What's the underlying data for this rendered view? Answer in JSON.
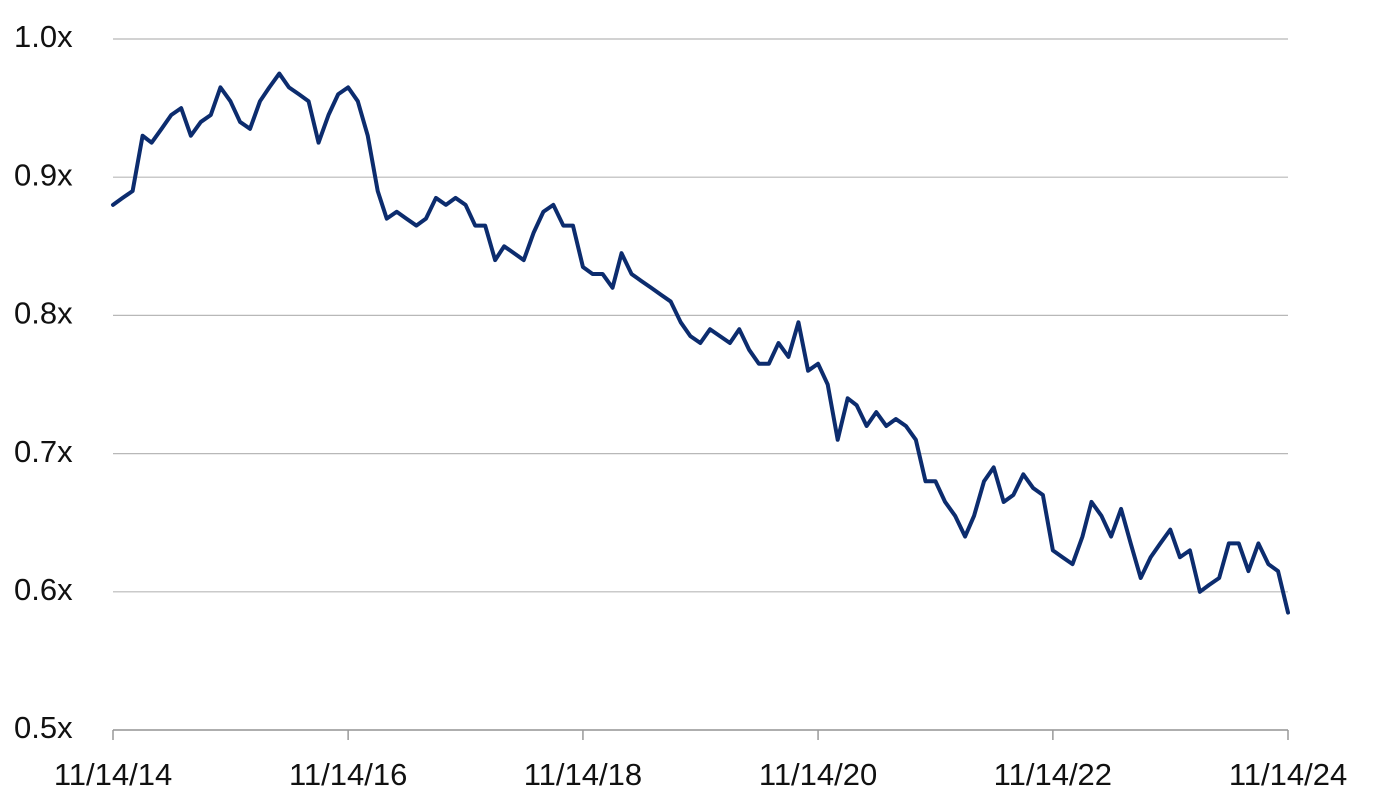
{
  "chart_data": {
    "type": "line",
    "color": "#0c2c6e",
    "grid": true,
    "ylim": [
      0.5,
      1.0
    ],
    "yticks": [
      {
        "value": 0.5,
        "label": "0.5x"
      },
      {
        "value": 0.6,
        "label": "0.6x"
      },
      {
        "value": 0.7,
        "label": "0.7x"
      },
      {
        "value": 0.8,
        "label": "0.8x"
      },
      {
        "value": 0.9,
        "label": "0.9x"
      },
      {
        "value": 1.0,
        "label": "1.0x"
      }
    ],
    "xlim": [
      "11/14/14",
      "11/14/24"
    ],
    "xticks": [
      "11/14/14",
      "11/14/16",
      "11/14/18",
      "11/14/20",
      "11/14/22",
      "11/14/24"
    ],
    "x": [
      "11/14/14",
      "12/14/14",
      "1/14/15",
      "2/14/15",
      "3/14/15",
      "4/14/15",
      "5/14/15",
      "6/14/15",
      "7/14/15",
      "8/14/15",
      "9/14/15",
      "10/14/15",
      "11/14/15",
      "12/14/15",
      "1/14/16",
      "2/14/16",
      "3/14/16",
      "4/14/16",
      "5/14/16",
      "6/14/16",
      "7/14/16",
      "8/14/16",
      "9/14/16",
      "10/14/16",
      "11/14/16",
      "12/14/16",
      "1/14/17",
      "2/14/17",
      "3/14/17",
      "4/14/17",
      "5/14/17",
      "6/14/17",
      "7/14/17",
      "8/14/17",
      "9/14/17",
      "10/14/17",
      "11/14/17",
      "12/14/17",
      "1/14/18",
      "2/14/18",
      "3/14/18",
      "4/14/18",
      "5/14/18",
      "6/14/18",
      "7/14/18",
      "8/14/18",
      "9/14/18",
      "10/14/18",
      "11/14/18",
      "12/14/18",
      "1/14/19",
      "2/14/19",
      "3/14/19",
      "4/14/19",
      "5/14/19",
      "6/14/19",
      "7/14/19",
      "8/14/19",
      "9/14/19",
      "10/14/19",
      "11/14/19",
      "12/14/19",
      "1/14/20",
      "2/14/20",
      "3/14/20",
      "4/14/20",
      "5/14/20",
      "6/14/20",
      "7/14/20",
      "8/14/20",
      "9/14/20",
      "10/14/20",
      "11/14/20",
      "12/14/20",
      "1/14/21",
      "2/14/21",
      "3/14/21",
      "4/14/21",
      "5/14/21",
      "6/14/21",
      "7/14/21",
      "8/14/21",
      "9/14/21",
      "10/14/21",
      "11/14/21",
      "12/14/21",
      "1/14/22",
      "2/14/22",
      "3/14/22",
      "4/14/22",
      "5/14/22",
      "6/14/22",
      "7/14/22",
      "8/14/22",
      "9/14/22",
      "10/14/22",
      "11/14/22",
      "12/14/22",
      "1/14/23",
      "2/14/23",
      "3/14/23",
      "4/14/23",
      "5/14/23",
      "6/14/23",
      "7/14/23",
      "8/14/23",
      "9/14/23",
      "10/14/23",
      "11/14/23",
      "12/14/23",
      "1/14/24",
      "2/14/24",
      "3/14/24",
      "4/14/24",
      "5/14/24",
      "6/14/24",
      "7/14/24",
      "8/14/24",
      "9/14/24",
      "10/14/24",
      "11/14/24"
    ],
    "values": [
      0.88,
      0.885,
      0.89,
      0.93,
      0.925,
      0.935,
      0.945,
      0.95,
      0.93,
      0.94,
      0.945,
      0.965,
      0.955,
      0.94,
      0.935,
      0.955,
      0.965,
      0.975,
      0.965,
      0.96,
      0.955,
      0.925,
      0.945,
      0.96,
      0.965,
      0.955,
      0.93,
      0.89,
      0.87,
      0.875,
      0.87,
      0.865,
      0.87,
      0.885,
      0.88,
      0.885,
      0.88,
      0.865,
      0.865,
      0.84,
      0.85,
      0.845,
      0.84,
      0.86,
      0.875,
      0.88,
      0.865,
      0.865,
      0.835,
      0.83,
      0.83,
      0.82,
      0.845,
      0.83,
      0.825,
      0.82,
      0.815,
      0.81,
      0.795,
      0.785,
      0.78,
      0.79,
      0.785,
      0.78,
      0.79,
      0.775,
      0.765,
      0.765,
      0.78,
      0.77,
      0.795,
      0.76,
      0.765,
      0.75,
      0.71,
      0.74,
      0.735,
      0.72,
      0.73,
      0.72,
      0.725,
      0.72,
      0.71,
      0.68,
      0.68,
      0.665,
      0.655,
      0.64,
      0.655,
      0.68,
      0.69,
      0.665,
      0.67,
      0.685,
      0.675,
      0.67,
      0.63,
      0.625,
      0.62,
      0.64,
      0.665,
      0.655,
      0.64,
      0.66,
      0.635,
      0.61,
      0.625,
      0.635,
      0.645,
      0.625,
      0.63,
      0.6,
      0.605,
      0.61,
      0.635,
      0.635,
      0.615,
      0.635,
      0.62,
      0.615,
      0.585
    ]
  }
}
